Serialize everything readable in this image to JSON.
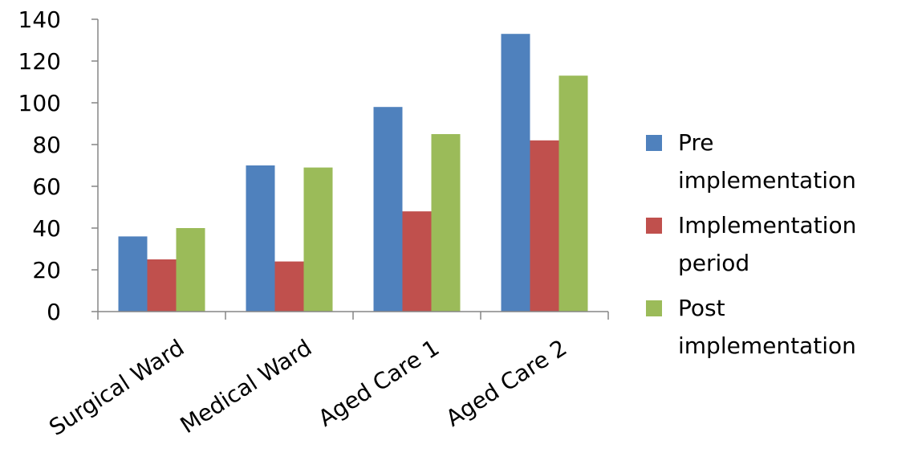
{
  "chart_data": {
    "type": "bar",
    "title": "",
    "xlabel": "",
    "ylabel": "",
    "categories": [
      "Surgical Ward",
      "Medical Ward",
      "Aged Care 1",
      "Aged Care 2"
    ],
    "series": [
      {
        "name": "Pre implementation",
        "color": "#4F81BD",
        "values": [
          36,
          70,
          98,
          133
        ]
      },
      {
        "name": "Implementation period",
        "color": "#C0504D",
        "values": [
          25,
          24,
          48,
          82
        ]
      },
      {
        "name": "Post implementation",
        "color": "#9BBB59",
        "values": [
          40,
          69,
          85,
          113
        ]
      }
    ],
    "ylim": [
      0,
      140
    ],
    "yticks": [
      "0",
      "20",
      "40",
      "60",
      "80",
      "100",
      "120",
      "140"
    ],
    "grid": false,
    "legend_position": "right",
    "legend": {
      "items": [
        {
          "lines": [
            "Pre",
            "implementation"
          ],
          "color": "#4F81BD"
        },
        {
          "lines": [
            "Implementation",
            "period"
          ],
          "color": "#C0504D"
        },
        {
          "lines": [
            "Post",
            "implementation"
          ],
          "color": "#9BBB59"
        }
      ]
    }
  }
}
